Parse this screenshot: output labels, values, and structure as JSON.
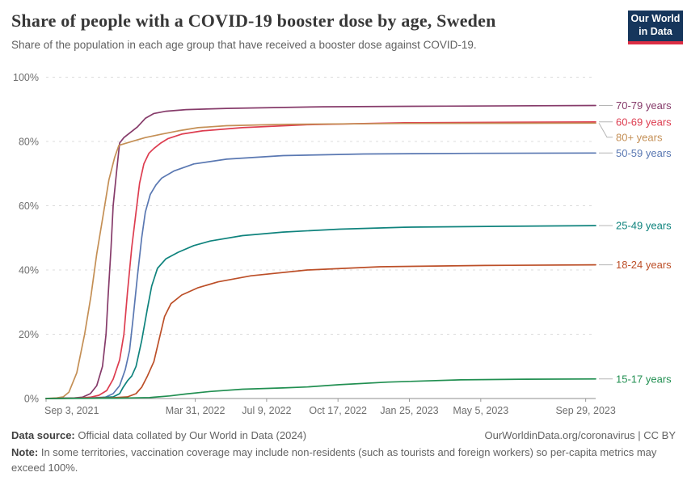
{
  "header": {
    "title": "Share of people with a COVID-19 booster dose by age, Sweden",
    "subtitle": "Share of the population in each age group that have received a booster dose against COVID-19.",
    "logo": {
      "line1": "Our World",
      "line2": "in Data",
      "bg_color": "#16365c",
      "accent_color": "#dc2e44"
    }
  },
  "chart_data": {
    "type": "line",
    "title": "Share of people with a COVID-19 booster dose by age, Sweden",
    "x_unit": "days since Sep 3, 2021",
    "x_domain": [
      0,
      770
    ],
    "ylim": [
      0,
      100
    ],
    "grid": "horizontal-dashed",
    "legend_position": "right-end-labels",
    "x_ticks": [
      {
        "day": 0,
        "label": "Sep 3, 2021"
      },
      {
        "day": 209,
        "label": "Mar 31, 2022"
      },
      {
        "day": 309,
        "label": "Jul 9, 2022"
      },
      {
        "day": 409,
        "label": "Oct 17, 2022"
      },
      {
        "day": 509,
        "label": "Jan 25, 2023"
      },
      {
        "day": 609,
        "label": "May 5, 2023"
      },
      {
        "day": 756,
        "label": "Sep 29, 2023"
      }
    ],
    "y_ticks": [
      {
        "value": 0,
        "label": "0%"
      },
      {
        "value": 20,
        "label": "20%"
      },
      {
        "value": 40,
        "label": "40%"
      },
      {
        "value": 60,
        "label": "60%"
      },
      {
        "value": 80,
        "label": "80%"
      },
      {
        "value": 100,
        "label": "100%"
      }
    ],
    "series": [
      {
        "name": "70-79 years",
        "color": "#863b6a",
        "points": [
          [
            0,
            0
          ],
          [
            40,
            0.2
          ],
          [
            51,
            0.4
          ],
          [
            62,
            1.5
          ],
          [
            71,
            4
          ],
          [
            79,
            10
          ],
          [
            84,
            20
          ],
          [
            87,
            32
          ],
          [
            91,
            47
          ],
          [
            94,
            60
          ],
          [
            99,
            71
          ],
          [
            103,
            79.5
          ],
          [
            109,
            81.2
          ],
          [
            117,
            82.6
          ],
          [
            128,
            84.5
          ],
          [
            139,
            87.2
          ],
          [
            151,
            88.7
          ],
          [
            168,
            89.4
          ],
          [
            196,
            89.9
          ],
          [
            253,
            90.3
          ],
          [
            388,
            90.8
          ],
          [
            558,
            91.0
          ],
          [
            770,
            91.2
          ]
        ]
      },
      {
        "name": "60-69 years",
        "color": "#dd3d50",
        "points": [
          [
            0,
            0
          ],
          [
            50,
            0.2
          ],
          [
            62,
            0.4
          ],
          [
            74,
            1
          ],
          [
            85,
            2.5
          ],
          [
            94,
            6
          ],
          [
            103,
            12
          ],
          [
            109,
            20
          ],
          [
            114,
            33
          ],
          [
            120,
            47
          ],
          [
            126,
            58
          ],
          [
            131,
            67
          ],
          [
            137,
            73
          ],
          [
            144,
            76.3
          ],
          [
            151,
            77.8
          ],
          [
            160,
            79.4
          ],
          [
            171,
            80.9
          ],
          [
            190,
            82.3
          ],
          [
            219,
            83.3
          ],
          [
            275,
            84.3
          ],
          [
            366,
            85.2
          ],
          [
            502,
            85.8
          ],
          [
            770,
            86.1
          ]
        ]
      },
      {
        "name": "80+ years",
        "color": "#c48f55",
        "points": [
          [
            0,
            0
          ],
          [
            15,
            0.2
          ],
          [
            24,
            0.5
          ],
          [
            32,
            2
          ],
          [
            43,
            8
          ],
          [
            54,
            20
          ],
          [
            63,
            32
          ],
          [
            71,
            45
          ],
          [
            80,
            57
          ],
          [
            88,
            68
          ],
          [
            96,
            75
          ],
          [
            102,
            78.8
          ],
          [
            111,
            79.4
          ],
          [
            122,
            80.1
          ],
          [
            139,
            81.2
          ],
          [
            162,
            82.3
          ],
          [
            185,
            83.3
          ],
          [
            213,
            84.3
          ],
          [
            253,
            84.9
          ],
          [
            332,
            85.3
          ],
          [
            500,
            85.6
          ],
          [
            770,
            85.7
          ]
        ]
      },
      {
        "name": "50-59 years",
        "color": "#5a78b2",
        "points": [
          [
            0,
            0
          ],
          [
            60,
            0.2
          ],
          [
            83,
            0.4
          ],
          [
            94,
            1.5
          ],
          [
            103,
            4
          ],
          [
            111,
            9
          ],
          [
            117,
            15
          ],
          [
            122,
            25
          ],
          [
            128,
            38
          ],
          [
            134,
            50
          ],
          [
            139,
            58
          ],
          [
            146,
            63.5
          ],
          [
            154,
            66.5
          ],
          [
            162,
            68.6
          ],
          [
            179,
            70.8
          ],
          [
            207,
            73
          ],
          [
            253,
            74.5
          ],
          [
            332,
            75.6
          ],
          [
            445,
            76.1
          ],
          [
            600,
            76.3
          ],
          [
            770,
            76.4
          ]
        ]
      },
      {
        "name": "25-49 years",
        "color": "#0f837d",
        "points": [
          [
            0,
            0
          ],
          [
            70,
            0.2
          ],
          [
            94,
            0.5
          ],
          [
            103,
            1.5
          ],
          [
            108,
            3.5
          ],
          [
            114,
            5.5
          ],
          [
            120,
            7
          ],
          [
            126,
            10
          ],
          [
            134,
            18
          ],
          [
            142,
            28
          ],
          [
            148,
            35
          ],
          [
            156,
            40.5
          ],
          [
            168,
            43.5
          ],
          [
            185,
            45.5
          ],
          [
            207,
            47.6
          ],
          [
            230,
            49
          ],
          [
            275,
            50.7
          ],
          [
            332,
            51.8
          ],
          [
            411,
            52.7
          ],
          [
            502,
            53.3
          ],
          [
            650,
            53.6
          ],
          [
            770,
            53.8
          ]
        ]
      },
      {
        "name": "18-24 years",
        "color": "#bc4f28",
        "points": [
          [
            0,
            0
          ],
          [
            90,
            0.2
          ],
          [
            114,
            0.5
          ],
          [
            126,
            1.5
          ],
          [
            134,
            3.5
          ],
          [
            142,
            7
          ],
          [
            151,
            11.5
          ],
          [
            158,
            18
          ],
          [
            166,
            25.5
          ],
          [
            175,
            29.5
          ],
          [
            190,
            32.2
          ],
          [
            213,
            34.5
          ],
          [
            241,
            36.3
          ],
          [
            287,
            38.2
          ],
          [
            366,
            40
          ],
          [
            468,
            41
          ],
          [
            615,
            41.4
          ],
          [
            770,
            41.6
          ]
        ]
      },
      {
        "name": "15-17 years",
        "color": "#218f51",
        "points": [
          [
            0,
            0
          ],
          [
            100,
            0.1
          ],
          [
            145,
            0.3
          ],
          [
            151,
            0.4
          ],
          [
            173,
            0.8
          ],
          [
            196,
            1.4
          ],
          [
            230,
            2.2
          ],
          [
            275,
            2.9
          ],
          [
            332,
            3.3
          ],
          [
            366,
            3.6
          ],
          [
            411,
            4.3
          ],
          [
            479,
            5.1
          ],
          [
            581,
            5.8
          ],
          [
            672,
            6.0
          ],
          [
            770,
            6.1
          ]
        ]
      }
    ]
  },
  "footer": {
    "source_label": "Data source:",
    "source_text": " Official data collated by Our World in Data (2024)",
    "link_text": "OurWorldinData.org/coronavirus | CC BY",
    "note_label": "Note:",
    "note_text": " In some territories, vaccination coverage may include non-residents (such as tourists and foreign workers) so per-capita metrics may exceed 100%."
  }
}
